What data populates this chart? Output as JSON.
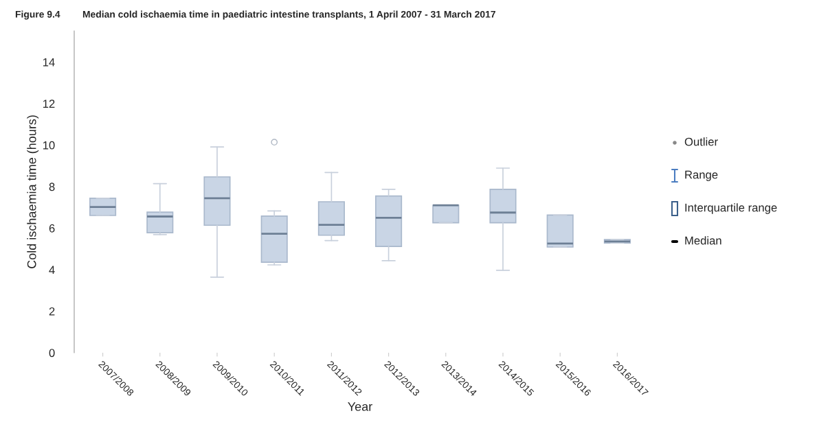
{
  "chart_data": {
    "type": "box",
    "subtitle": "Figure 9.4",
    "title": "Median cold ischaemia time in paediatric intestine transplants, 1 April 2007 - 31 March 2017",
    "xlabel": "Year",
    "ylabel": "Cold ischaemia time (hours)",
    "categories": [
      "2007/2008",
      "2008/2009",
      "2009/2010",
      "2010/2011",
      "2011/2012",
      "2012/2013",
      "2013/2014",
      "2014/2015",
      "2015/2016",
      "2016/2017"
    ],
    "boxes": [
      {
        "low": 6.61,
        "q1": 6.61,
        "median": 7.02,
        "q3": 7.44,
        "high": 7.44
      },
      {
        "low": 5.69,
        "q1": 5.78,
        "median": 6.56,
        "q3": 6.77,
        "high": 8.14
      },
      {
        "low": 3.64,
        "q1": 6.14,
        "median": 7.44,
        "q3": 8.47,
        "high": 9.91
      },
      {
        "low": 4.23,
        "q1": 4.36,
        "median": 5.73,
        "q3": 6.58,
        "high": 6.83,
        "outliers": [
          10.14
        ]
      },
      {
        "low": 5.4,
        "q1": 5.66,
        "median": 6.16,
        "q3": 7.27,
        "high": 8.68
      },
      {
        "low": 4.43,
        "q1": 5.12,
        "median": 6.5,
        "q3": 7.55,
        "high": 7.87
      },
      {
        "low": 6.26,
        "q1": 6.26,
        "median": 7.1,
        "q3": 7.1,
        "high": 7.1
      },
      {
        "low": 3.97,
        "q1": 6.26,
        "median": 6.75,
        "q3": 7.87,
        "high": 8.89
      },
      {
        "low": 5.09,
        "q1": 5.09,
        "median": 5.26,
        "q3": 6.63,
        "high": 6.63
      },
      {
        "low": 5.28,
        "q1": 5.28,
        "median": 5.36,
        "q3": 5.45,
        "high": 5.45
      }
    ],
    "color": "#c9d5e5",
    "ylim": [
      0,
      15.5
    ],
    "yticks": [
      0,
      2,
      4,
      6,
      8,
      10,
      12,
      14
    ],
    "grid": false,
    "annotations": [
      "Outlier",
      "Range",
      "Interquartile range",
      "Median"
    ]
  }
}
